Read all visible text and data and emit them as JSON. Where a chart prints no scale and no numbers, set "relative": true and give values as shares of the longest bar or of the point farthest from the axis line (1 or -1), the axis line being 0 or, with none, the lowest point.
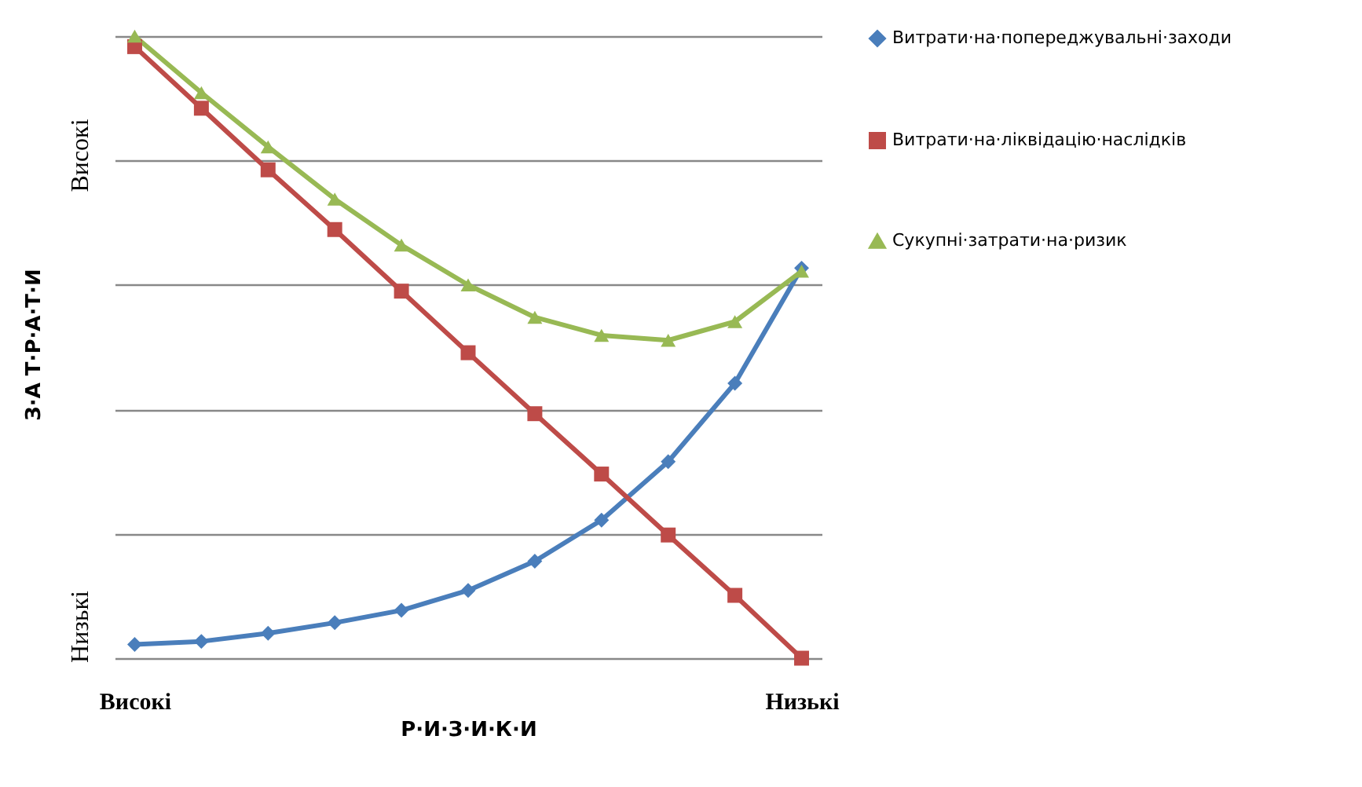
{
  "chart_data": {
    "type": "line",
    "relative": true,
    "xlabel": "Р·И·З·И·К·И",
    "ylabel": "З·А Т·Р·А·Т·И",
    "categories": [
      "Високі",
      null,
      null,
      null,
      null,
      null,
      null,
      null,
      null,
      null,
      "Низькі"
    ],
    "annotations": [
      "Високі",
      "Низькі"
    ],
    "grid": "y",
    "legend": "right",
    "series": [
      {
        "name": "Витрати·на·попереджувальні·заходи",
        "color": "#4a7ebb",
        "marker": "diamond",
        "values": [
          0.022,
          0.027,
          0.04,
          0.057,
          0.077,
          0.109,
          0.156,
          0.222,
          0.316,
          0.442,
          0.627
        ]
      },
      {
        "name": "Витрати·на·ліквідацію·наслідків",
        "color": "#be4b48",
        "marker": "square",
        "values": [
          0.983,
          0.884,
          0.785,
          0.689,
          0.59,
          0.491,
          0.393,
          0.296,
          0.198,
          0.101,
          0
        ]
      },
      {
        "name": "Сукупні·затрати·на·ризик",
        "color": "#98b954",
        "marker": "triangle",
        "values": [
          1,
          0.909,
          0.822,
          0.738,
          0.664,
          0.6,
          0.548,
          0.519,
          0.511,
          0.541,
          0.622
        ]
      }
    ]
  }
}
